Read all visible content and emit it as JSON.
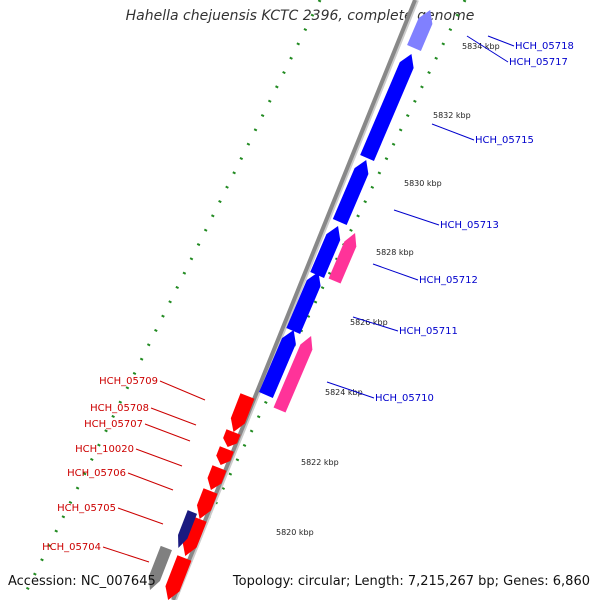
{
  "title": "Hahella chejuensis KCTC 2396, complete genome",
  "accession_text": "Accession: NC_007645",
  "topology_text": "Topology: circular; Length: 7,215,267 bp; Genes: 6,860",
  "colors": {
    "forward_gene": "#0000ff",
    "reverse_gene": "#ff0000",
    "forward_rna": "#ff3399",
    "forward_gene_light": "#8080ff",
    "dark_gene": "#1a1a80",
    "backbone": "#888888",
    "tick_dots": "#228b22",
    "forward_label": "#0000cc",
    "reverse_label": "#cc0000"
  },
  "ruler_ticks": [
    {
      "label": "5834 kbp"
    },
    {
      "label": "5832 kbp"
    },
    {
      "label": "5830 kbp"
    },
    {
      "label": "5828 kbp"
    },
    {
      "label": "5826 kbp"
    },
    {
      "label": "5824 kbp"
    },
    {
      "label": "5822 kbp"
    },
    {
      "label": "5820 kbp"
    }
  ],
  "forward_labels": [
    {
      "id": "HCH_05718"
    },
    {
      "id": "HCH_05717"
    },
    {
      "id": "HCH_05715"
    },
    {
      "id": "HCH_05713"
    },
    {
      "id": "HCH_05712"
    },
    {
      "id": "HCH_05711"
    },
    {
      "id": "HCH_05710"
    }
  ],
  "reverse_labels": [
    {
      "id": "HCH_05709"
    },
    {
      "id": "HCH_05708"
    },
    {
      "id": "HCH_05707"
    },
    {
      "id": "HCH_10020"
    },
    {
      "id": "HCH_05706"
    },
    {
      "id": "HCH_05705"
    },
    {
      "id": "HCH_05704"
    }
  ]
}
